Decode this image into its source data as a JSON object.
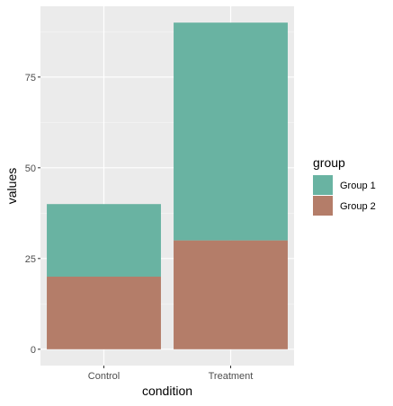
{
  "chart_data": {
    "type": "bar",
    "stacked": true,
    "categories": [
      "Control",
      "Treatment"
    ],
    "series": [
      {
        "name": "Group 1",
        "values": [
          20,
          60
        ],
        "color": "#69B3A2"
      },
      {
        "name": "Group 2",
        "values": [
          20,
          30
        ],
        "color": "#B47D69"
      }
    ],
    "xlabel": "condition",
    "ylabel": "values",
    "ylim": [
      -4.5,
      94.5
    ],
    "yticks": [
      0,
      25,
      50,
      75
    ],
    "grid": true,
    "panel_background": "#EBEBEB",
    "legend": {
      "title": "group",
      "placement": "right"
    }
  }
}
